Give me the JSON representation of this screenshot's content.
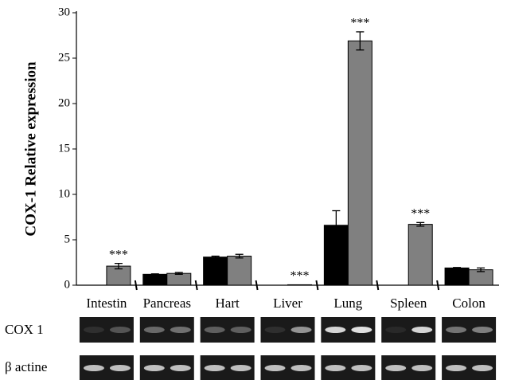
{
  "chart_data": {
    "type": "bar",
    "y_label": "COX-1 Relative expression",
    "categories": [
      "Intestin",
      "Pancreas",
      "Hart",
      "Liver",
      "Lung",
      "Spleen",
      "Colon"
    ],
    "series": [
      {
        "color": "#000000",
        "values": [
          0,
          1.2,
          3.1,
          0,
          6.6,
          0,
          1.9
        ],
        "errors": [
          0,
          0.05,
          0.1,
          0,
          1.6,
          0,
          0.05
        ]
      },
      {
        "color": "#808080",
        "values": [
          2.1,
          1.3,
          3.2,
          0.05,
          26.9,
          6.7,
          1.7
        ],
        "errors": [
          0.3,
          0.1,
          0.2,
          0,
          1.0,
          0.2,
          0.2
        ]
      }
    ],
    "significance": [
      "***",
      null,
      null,
      "***",
      "***",
      "***",
      null
    ],
    "ylim": [
      0,
      30
    ],
    "yticks": [
      0,
      5,
      10,
      15,
      20,
      25,
      30
    ],
    "gel_rows": [
      "COX 1",
      "β actine"
    ]
  }
}
